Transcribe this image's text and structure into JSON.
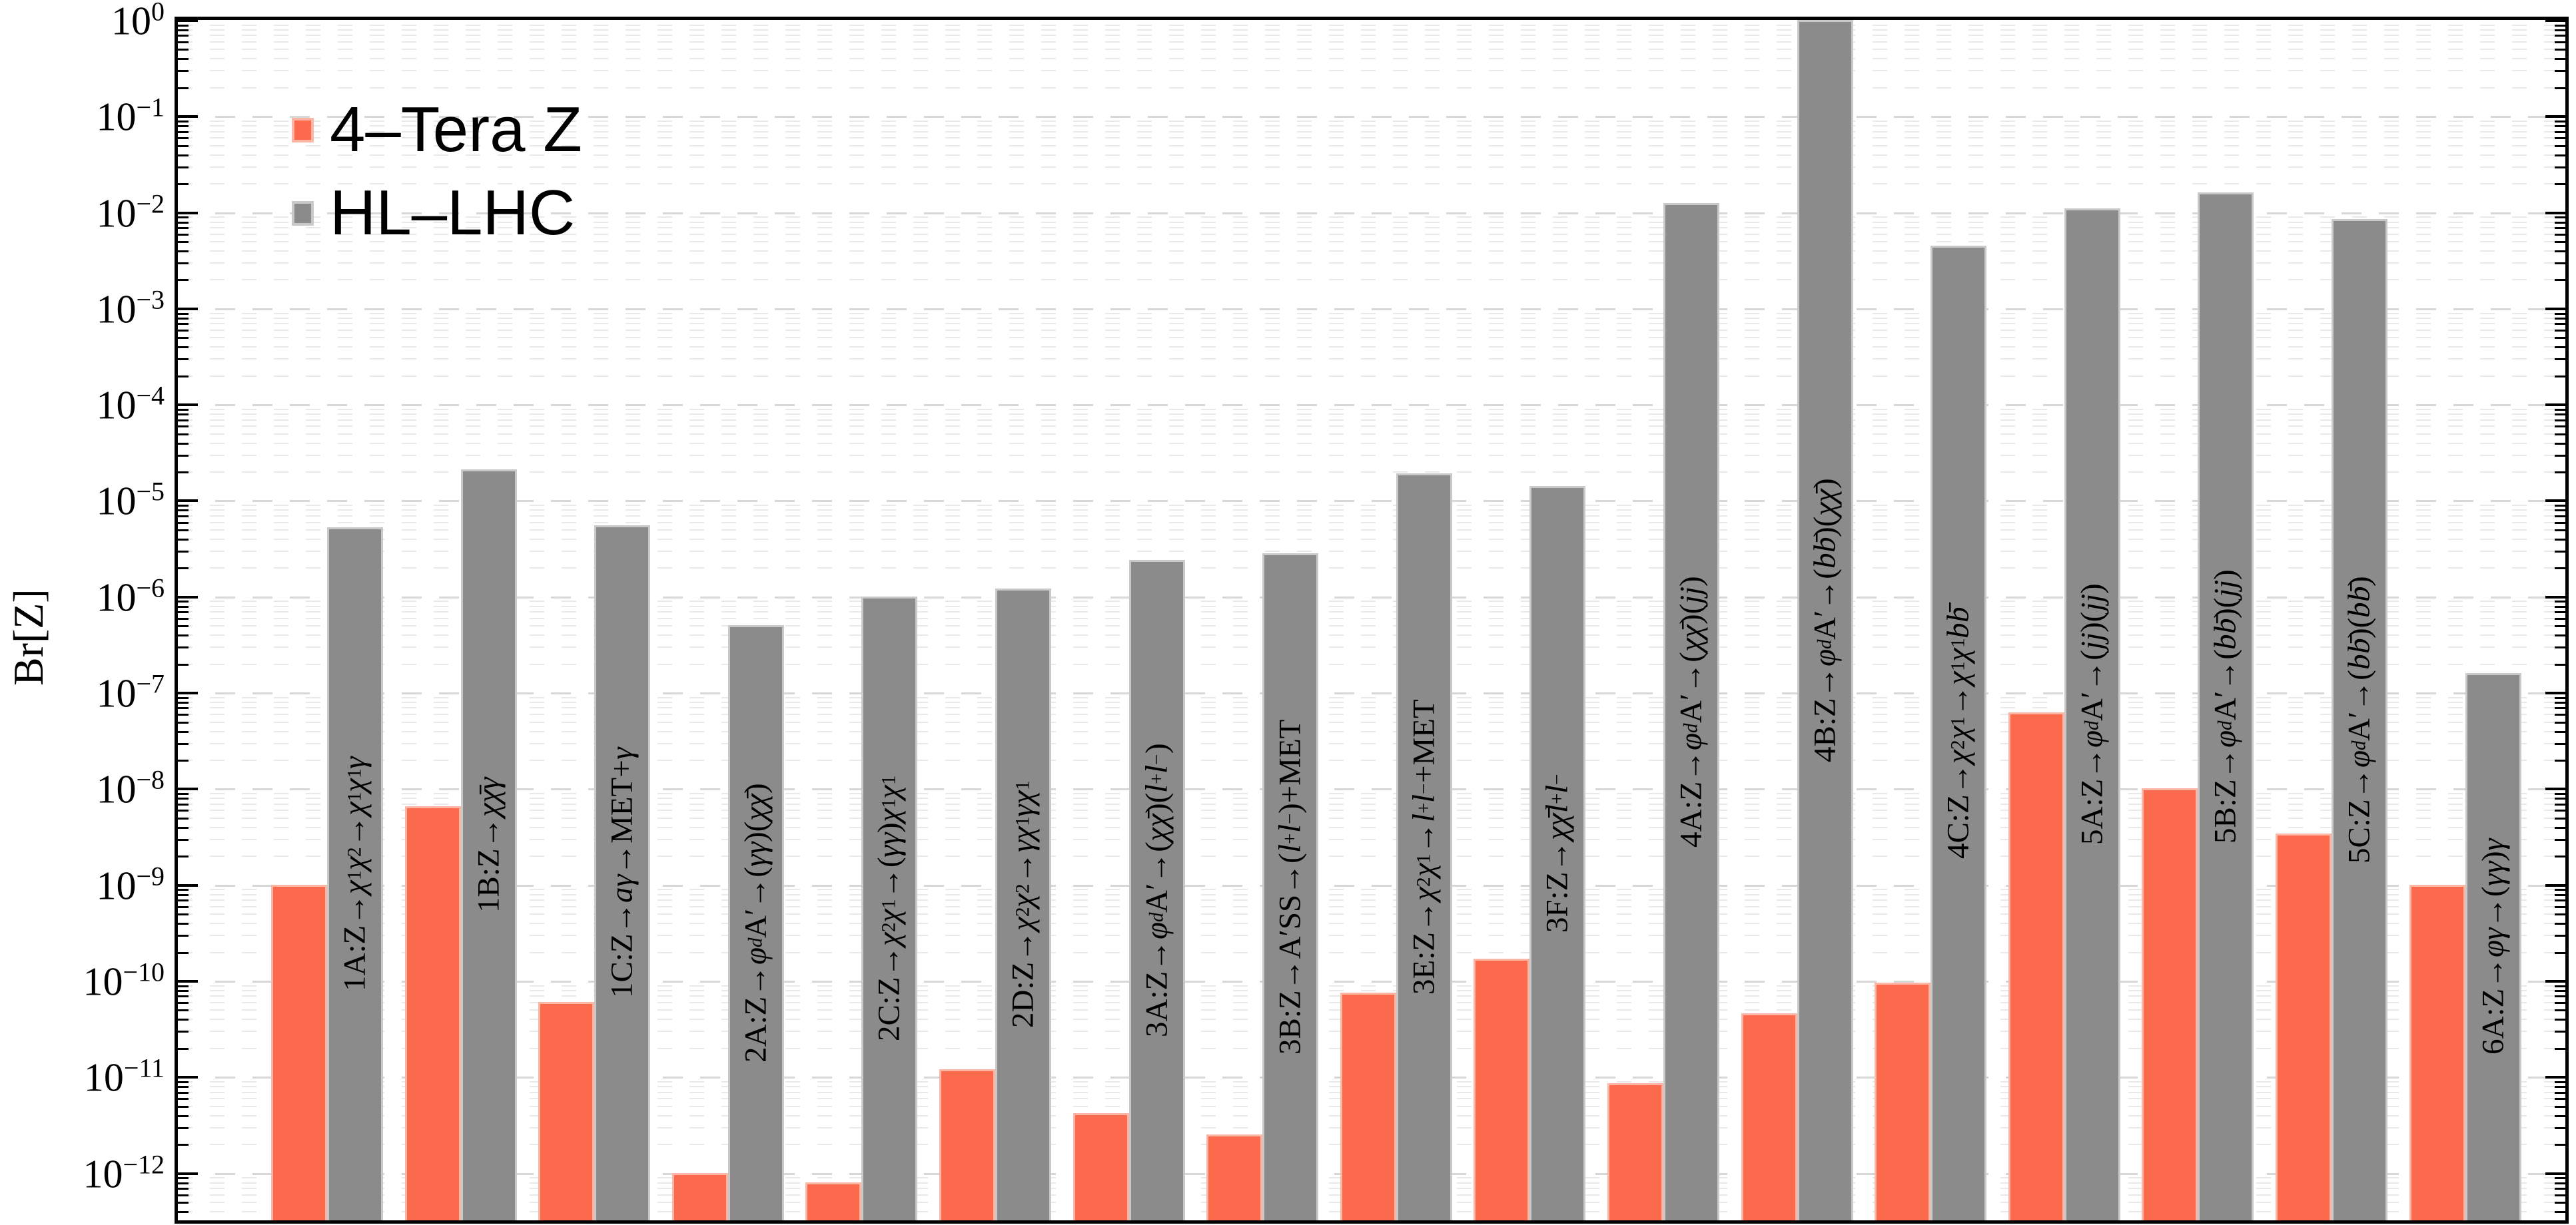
{
  "y_axis_title": "Br[Z]",
  "legend": {
    "items": [
      {
        "label": "4–Tera Z",
        "color": "#fb6a4d",
        "border": "#fdb5a4"
      },
      {
        "label": "HL–LHC",
        "color": "#8b8b8b",
        "border": "#c9c9c9"
      }
    ]
  },
  "colors": {
    "tera_bar": "#fb6a4d",
    "tera_edge": "#fdb5a4",
    "hllhc_bar": "#8b8b8b",
    "hllhc_edge": "#c9c9c9",
    "frame": "#000000",
    "grid_major": "#d7d7d7",
    "grid_minor": "#e9e9e9"
  },
  "chart_data": {
    "type": "bar",
    "title": "",
    "xlabel": "",
    "ylabel": "Br[Z]",
    "yscale": "log",
    "ylim": [
      3.2e-13,
      1.0
    ],
    "ytick_exponents": [
      0,
      -1,
      -2,
      -3,
      -4,
      -5,
      -6,
      -7,
      -8,
      -9,
      -10,
      -11,
      -12
    ],
    "grid": "log minor dashed horizontal",
    "legend_position": "upper-left",
    "categories": [
      {
        "id": "1A",
        "label": "1A:Z→χ_{1}χ_{2}→χ_{1}χ_{1}γ"
      },
      {
        "id": "1B",
        "label": "1B:Z→χχ̄γ"
      },
      {
        "id": "1C",
        "label": "1C:Z→aγ→MET+γ"
      },
      {
        "id": "2A",
        "label": "2A:Z→φ_{d}A′→(γγ)(χχ̄)"
      },
      {
        "id": "2C",
        "label": "2C:Z→χ_{2}χ_{1}→(γγ)χ_{1}χ_{1}"
      },
      {
        "id": "2D",
        "label": "2D:Z→χ_{2}χ_{2}→γχ_{1}γχ_{1}"
      },
      {
        "id": "3A",
        "label": "3A:Z→φ_{d}A′→(χχ̄)(l^{+}l^{−})"
      },
      {
        "id": "3B",
        "label": "3B:Z→A′SS→(l^{+}l^{−})+MET"
      },
      {
        "id": "3E",
        "label": "3E:Z→χ_{2}χ_{1}→l^{+}l^{−}+MET"
      },
      {
        "id": "3F",
        "label": "3F:Z→χχ̄ l^{+}l^{−}"
      },
      {
        "id": "4A",
        "label": "4A:Z→φ_{d}A′→(χχ̄)(jj)"
      },
      {
        "id": "4B",
        "label": "4B:Z→φ_{d}A′→(bb̄)(χχ̄)"
      },
      {
        "id": "4C",
        "label": "4C:Z→χ_{2}χ_{1}→χ_{1}χ_{1}bb̄"
      },
      {
        "id": "5A",
        "label": "5A:Z→φ_{d}A′→(jj)(jj)"
      },
      {
        "id": "5B",
        "label": "5B:Z→φ_{d}A′→(bb̄)(jj)"
      },
      {
        "id": "5C",
        "label": "5C:Z→φ_{d}A′→(bb̄)(bb̄)"
      },
      {
        "id": "6A",
        "label": "6A:Z→φγ→(γγ)γ"
      }
    ],
    "series": [
      {
        "name": "4–Tera Z",
        "color": "#fb6a4d",
        "values": [
          1e-09,
          6.5e-09,
          6e-11,
          1e-12,
          8e-13,
          1.2e-11,
          4.2e-12,
          2.5e-12,
          7.5e-11,
          1.7e-10,
          8.5e-12,
          4.6e-11,
          9.5e-11,
          6.2e-08,
          1e-08,
          3.4e-09,
          1e-09
        ]
      },
      {
        "name": "HL–LHC",
        "color": "#8b8b8b",
        "values": [
          5.2e-06,
          2.1e-05,
          5.5e-06,
          5e-07,
          1e-06,
          1.2e-06,
          2.4e-06,
          2.8e-06,
          1.9e-05,
          1.4e-05,
          0.0125,
          1.0,
          0.0045,
          0.011,
          0.016,
          0.0085,
          1.6e-07
        ]
      }
    ]
  }
}
